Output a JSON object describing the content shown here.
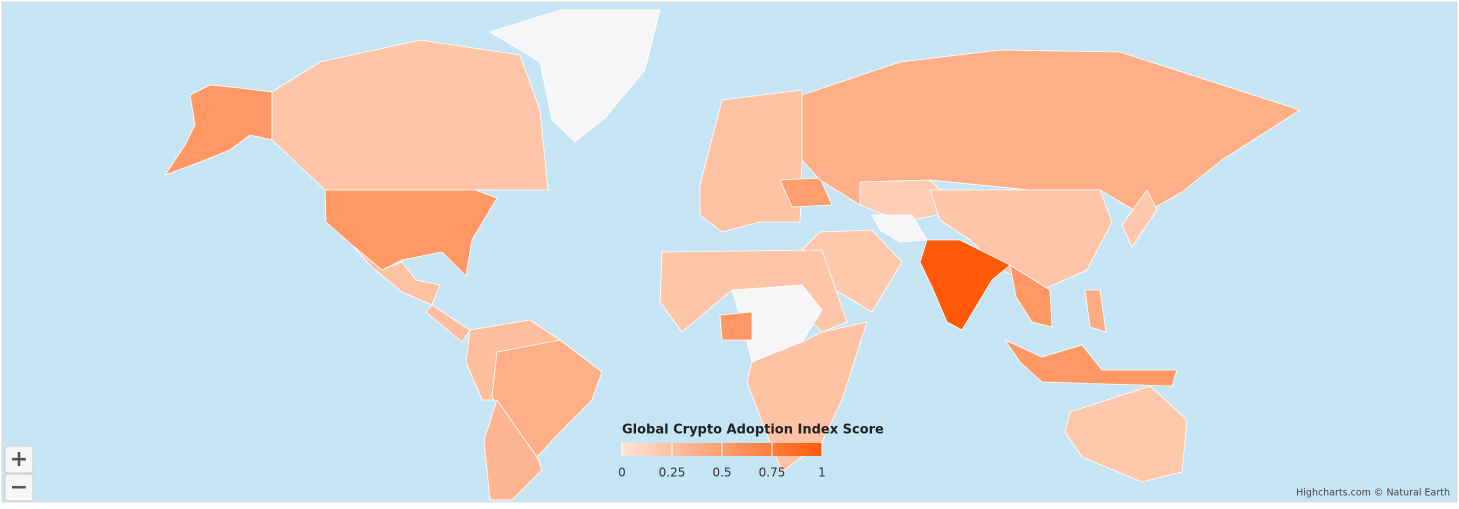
{
  "chart_data": {
    "type": "map",
    "title": "Global Crypto Adoption Index Score",
    "credits": "Highcharts.com © Natural Earth",
    "zoom_in": "+",
    "zoom_out": "−",
    "values": [
      0.55,
      0.22,
      null,
      0.25,
      0.27,
      0.28,
      0.38,
      0.33,
      0.24,
      0.5,
      0.38,
      0.16,
      0.2,
      null,
      0.22,
      1,
      0.22,
      null,
      0.55,
      0.24,
      0.55,
      0.55,
      0.4,
      0.2,
      0.2
    ],
    "null_color": "#f6f6f8",
    "color_axis": {
      "min": 0,
      "max": 1,
      "min_color": "#fee3d5",
      "max_color": "#ff5a0a",
      "ticks": [
        0,
        0.25,
        0.5,
        0.75,
        1
      ]
    }
  }
}
